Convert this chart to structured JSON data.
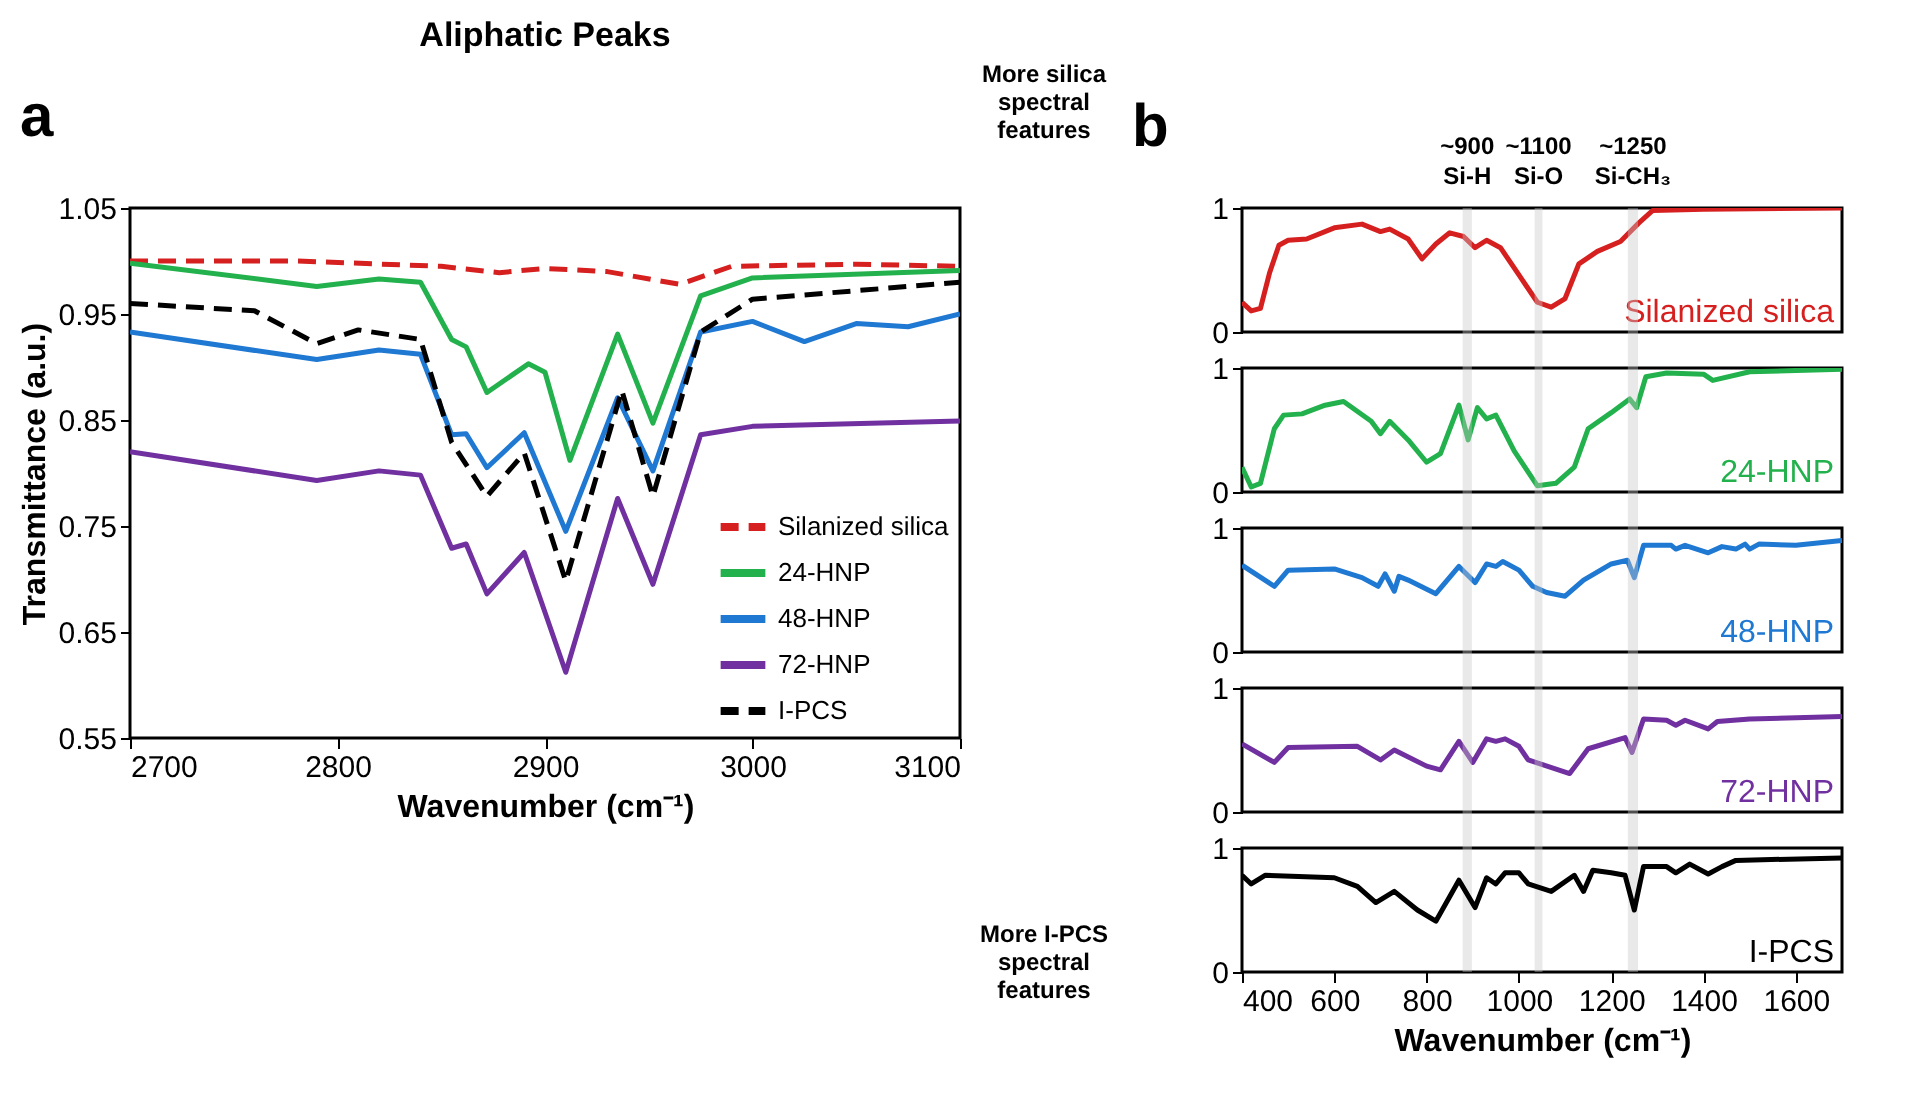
{
  "chart_data": [
    {
      "type": "line",
      "title": "Aliphatic Peaks",
      "xlabel": "Wavenumber (cm⁻¹)",
      "ylabel": "Transmittance (a.u.)",
      "xlim": [
        2700,
        3100
      ],
      "ylim": [
        0.55,
        1.05
      ],
      "xticks": [
        2700,
        2800,
        2900,
        3000,
        3100
      ],
      "yticks": [
        0.55,
        0.65,
        0.75,
        0.85,
        0.95,
        1.05
      ],
      "legend": "bottom right",
      "annotations": [
        "a",
        "More silica\nspectral\nfeatures",
        "More I-PCS\nspectral\nfeatures"
      ],
      "series": [
        {
          "name": "Silanized silica",
          "color": "#d62020",
          "line_style": "dashed",
          "x": [
            2700,
            2780,
            2850,
            2878,
            2900,
            2930,
            2965,
            2990,
            3050,
            3100
          ],
          "values": [
            1.0,
            1.0,
            0.995,
            0.989,
            0.993,
            0.99,
            0.978,
            0.995,
            0.997,
            0.995
          ]
        },
        {
          "name": "24-HNP",
          "color": "#22b14c",
          "line_style": "solid",
          "x": [
            2700,
            2790,
            2820,
            2840,
            2855,
            2862,
            2872,
            2892,
            2900,
            2912,
            2935,
            2952,
            2975,
            3000,
            3100
          ],
          "values": [
            0.998,
            0.976,
            0.983,
            0.98,
            0.926,
            0.919,
            0.876,
            0.903,
            0.895,
            0.812,
            0.931,
            0.847,
            0.967,
            0.984,
            0.991
          ]
        },
        {
          "name": "48-HNP",
          "color": "#1f78d1",
          "line_style": "solid",
          "x": [
            2700,
            2790,
            2820,
            2840,
            2855,
            2862,
            2872,
            2890,
            2910,
            2935,
            2952,
            2975,
            3000,
            3025,
            3050,
            3075,
            3100
          ],
          "values": [
            0.933,
            0.907,
            0.916,
            0.912,
            0.836,
            0.837,
            0.805,
            0.838,
            0.745,
            0.871,
            0.802,
            0.933,
            0.943,
            0.924,
            0.941,
            0.938,
            0.95
          ]
        },
        {
          "name": "72-HNP",
          "color": "#7030a0",
          "line_style": "solid",
          "x": [
            2700,
            2790,
            2820,
            2840,
            2855,
            2862,
            2872,
            2890,
            2910,
            2935,
            2952,
            2975,
            3000,
            3100
          ],
          "values": [
            0.82,
            0.793,
            0.802,
            0.798,
            0.729,
            0.733,
            0.686,
            0.725,
            0.612,
            0.776,
            0.695,
            0.836,
            0.844,
            0.849
          ]
        },
        {
          "name": "I-PCS",
          "color": "#000000",
          "line_style": "dashed",
          "x": [
            2700,
            2760,
            2790,
            2810,
            2840,
            2855,
            2872,
            2890,
            2910,
            2937,
            2952,
            2975,
            3000,
            3100
          ],
          "values": [
            0.96,
            0.953,
            0.922,
            0.935,
            0.926,
            0.829,
            0.778,
            0.819,
            0.698,
            0.878,
            0.778,
            0.933,
            0.964,
            0.98
          ]
        }
      ]
    },
    {
      "type": "line",
      "xlim": [
        400,
        1700
      ],
      "ylim": [
        0,
        1
      ],
      "yticks": [
        0,
        1
      ],
      "tick_labels": "y",
      "annotations": [
        "b"
      ],
      "series": [
        {
          "name": "Silanized silica",
          "color": "#d62020",
          "x": [
            400,
            420,
            440,
            460,
            480,
            500,
            540,
            600,
            660,
            700,
            720,
            760,
            790,
            820,
            850,
            880,
            905,
            930,
            960,
            1000,
            1040,
            1070,
            1100,
            1130,
            1170,
            1220,
            1260,
            1290,
            1400,
            1700
          ],
          "values": [
            0.24,
            0.17,
            0.19,
            0.48,
            0.7,
            0.74,
            0.75,
            0.84,
            0.87,
            0.81,
            0.83,
            0.75,
            0.59,
            0.71,
            0.8,
            0.77,
            0.68,
            0.74,
            0.68,
            0.46,
            0.24,
            0.2,
            0.27,
            0.55,
            0.65,
            0.73,
            0.88,
            0.98,
            0.99,
            1.0
          ]
        }
      ]
    },
    {
      "type": "line",
      "xlim": [
        400,
        1700
      ],
      "ylim": [
        0,
        1
      ],
      "yticks": [
        0,
        1
      ],
      "tick_labels": "y",
      "series": [
        {
          "name": "24-HNP",
          "color": "#22b14c",
          "x": [
            400,
            420,
            440,
            470,
            490,
            530,
            580,
            620,
            680,
            700,
            720,
            760,
            800,
            830,
            870,
            890,
            910,
            930,
            950,
            990,
            1040,
            1080,
            1120,
            1150,
            1200,
            1240,
            1255,
            1275,
            1320,
            1400,
            1420,
            1500,
            1700
          ],
          "values": [
            0.2,
            0.04,
            0.07,
            0.51,
            0.62,
            0.63,
            0.7,
            0.73,
            0.57,
            0.47,
            0.57,
            0.42,
            0.24,
            0.31,
            0.7,
            0.42,
            0.68,
            0.59,
            0.62,
            0.33,
            0.05,
            0.07,
            0.2,
            0.51,
            0.64,
            0.75,
            0.68,
            0.93,
            0.96,
            0.95,
            0.9,
            0.97,
            0.99
          ]
        }
      ]
    },
    {
      "type": "line",
      "xlim": [
        400,
        1700
      ],
      "ylim": [
        0,
        1
      ],
      "yticks": [
        0,
        1
      ],
      "tick_labels": "y",
      "series": [
        {
          "name": "48-HNP",
          "color": "#1f78d1",
          "x": [
            400,
            470,
            500,
            600,
            660,
            695,
            710,
            730,
            740,
            760,
            820,
            870,
            905,
            930,
            950,
            965,
            1000,
            1030,
            1060,
            1100,
            1140,
            1200,
            1235,
            1250,
            1270,
            1330,
            1340,
            1360,
            1410,
            1440,
            1470,
            1490,
            1500,
            1520,
            1600,
            1700
          ],
          "values": [
            0.7,
            0.53,
            0.66,
            0.67,
            0.6,
            0.53,
            0.63,
            0.49,
            0.61,
            0.58,
            0.47,
            0.69,
            0.56,
            0.71,
            0.69,
            0.73,
            0.66,
            0.53,
            0.48,
            0.45,
            0.58,
            0.71,
            0.74,
            0.6,
            0.86,
            0.86,
            0.83,
            0.86,
            0.8,
            0.85,
            0.83,
            0.87,
            0.83,
            0.87,
            0.86,
            0.9
          ]
        }
      ]
    },
    {
      "type": "line",
      "xlim": [
        400,
        1700
      ],
      "ylim": [
        0,
        1
      ],
      "yticks": [
        0,
        1
      ],
      "tick_labels": "y",
      "series": [
        {
          "name": "72-HNP",
          "color": "#7030a0",
          "x": [
            400,
            470,
            500,
            650,
            700,
            730,
            800,
            830,
            870,
            900,
            930,
            950,
            970,
            1000,
            1020,
            1110,
            1150,
            1230,
            1245,
            1270,
            1320,
            1340,
            1360,
            1410,
            1430,
            1500,
            1700
          ],
          "values": [
            0.55,
            0.4,
            0.52,
            0.53,
            0.42,
            0.5,
            0.37,
            0.34,
            0.57,
            0.4,
            0.59,
            0.57,
            0.59,
            0.53,
            0.42,
            0.31,
            0.51,
            0.6,
            0.48,
            0.75,
            0.74,
            0.7,
            0.74,
            0.67,
            0.73,
            0.75,
            0.77
          ]
        }
      ]
    },
    {
      "type": "line",
      "xlabel": "Wavenumber (cm⁻¹)",
      "xlim": [
        400,
        1700
      ],
      "ylim": [
        0,
        1
      ],
      "xticks": [
        400,
        600,
        800,
        1000,
        1200,
        1400,
        1600
      ],
      "yticks": [
        0,
        1
      ],
      "bands": [
        {
          "axis": "x",
          "from": 878,
          "to": 898,
          "label": "~900\nSi-H",
          "color": "#c8c8c8"
        },
        {
          "axis": "x",
          "from": 1034,
          "to": 1051,
          "label": "~1100\nSi-O",
          "color": "#c8c8c8"
        },
        {
          "axis": "x",
          "from": 1236,
          "to": 1258,
          "label": "~1250\nSi-CH₃",
          "color": "#c8c8c8"
        }
      ],
      "series": [
        {
          "name": "I-PCS",
          "color": "#000000",
          "x": [
            400,
            420,
            450,
            600,
            650,
            690,
            730,
            780,
            820,
            870,
            905,
            930,
            950,
            970,
            1000,
            1020,
            1070,
            1120,
            1140,
            1160,
            1200,
            1230,
            1250,
            1270,
            1320,
            1340,
            1370,
            1410,
            1440,
            1470,
            1700
          ],
          "values": [
            0.78,
            0.71,
            0.78,
            0.76,
            0.69,
            0.56,
            0.65,
            0.5,
            0.41,
            0.74,
            0.52,
            0.76,
            0.71,
            0.8,
            0.8,
            0.71,
            0.65,
            0.78,
            0.65,
            0.82,
            0.8,
            0.78,
            0.5,
            0.85,
            0.85,
            0.8,
            0.87,
            0.79,
            0.85,
            0.9,
            0.92
          ]
        }
      ]
    }
  ]
}
